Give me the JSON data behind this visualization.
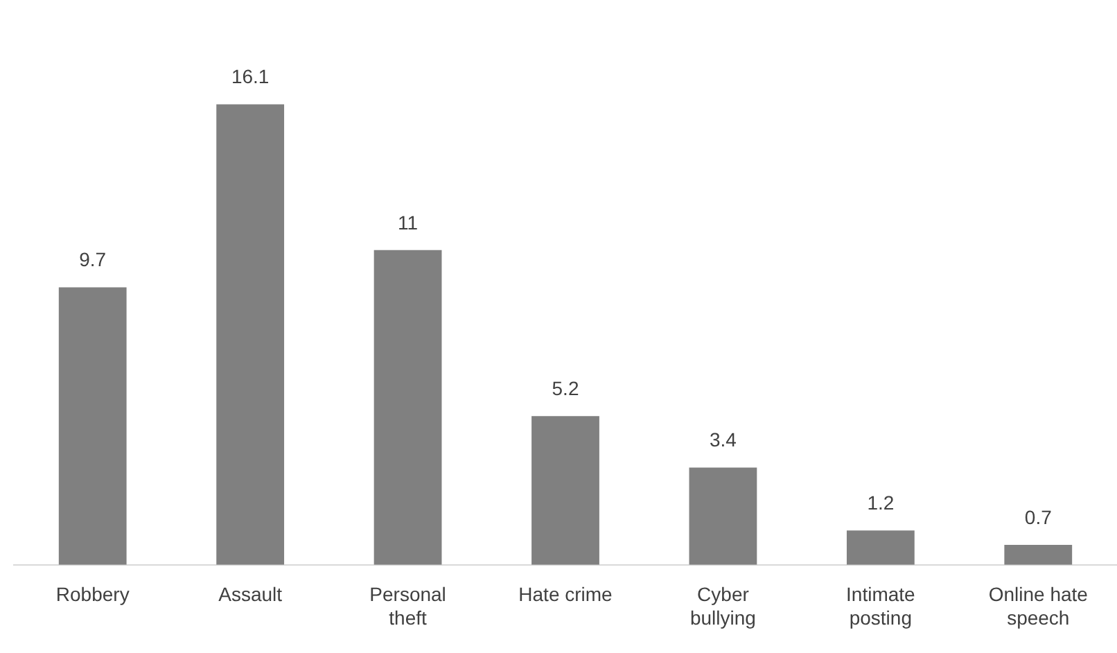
{
  "chart_data": {
    "type": "bar",
    "categories": [
      "Robbery",
      "Assault",
      "Personal theft",
      "Hate crime",
      "Cyber bullying",
      "Intimate posting",
      "Online hate speech"
    ],
    "values": [
      9.7,
      16.1,
      11,
      5.2,
      3.4,
      1.2,
      0.7
    ],
    "color": "#808080",
    "data_labels": true,
    "grid": false,
    "legend": false
  }
}
